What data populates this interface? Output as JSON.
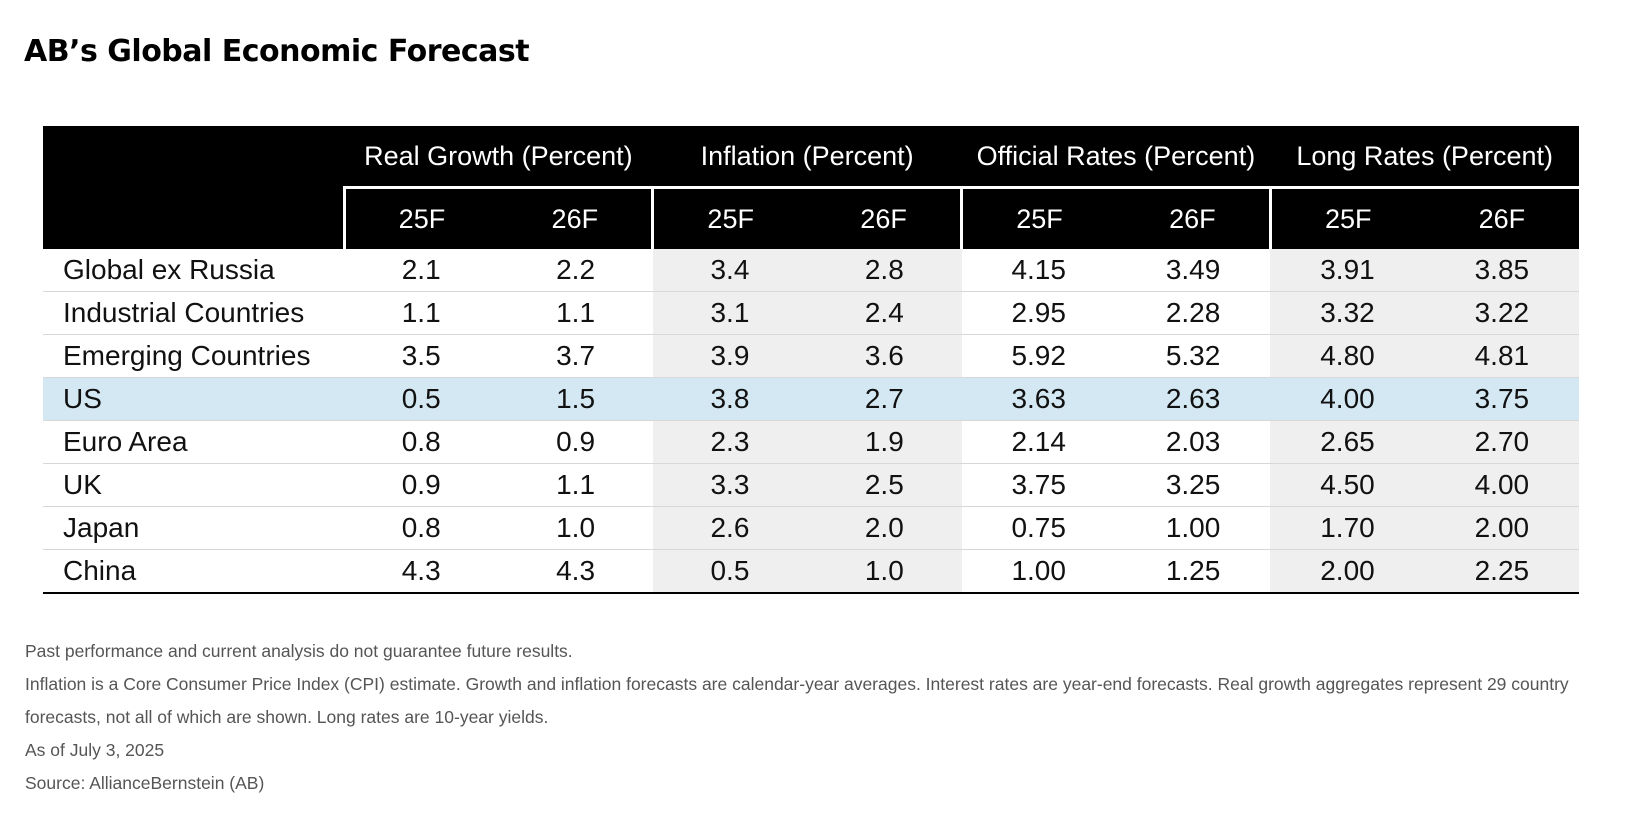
{
  "title": "AB’s Global Economic Forecast",
  "colors": {
    "header_bg": "#000000",
    "shade": "#efefef",
    "highlight": "#d4e8f3"
  },
  "chart_data": {
    "type": "table",
    "groups": [
      {
        "label": "Real Growth (Percent)",
        "subcolumns": [
          "25F",
          "26F"
        ],
        "shaded": false
      },
      {
        "label": "Inflation (Percent)",
        "subcolumns": [
          "25F",
          "26F"
        ],
        "shaded": true
      },
      {
        "label": "Official Rates (Percent)",
        "subcolumns": [
          "25F",
          "26F"
        ],
        "shaded": false
      },
      {
        "label": "Long Rates (Percent)",
        "subcolumns": [
          "25F",
          "26F"
        ],
        "shaded": true
      }
    ],
    "rows": [
      {
        "label": "Global ex Russia",
        "values": [
          "2.1",
          "2.2",
          "3.4",
          "2.8",
          "4.15",
          "3.49",
          "3.91",
          "3.85"
        ],
        "highlight": false
      },
      {
        "label": "Industrial Countries",
        "values": [
          "1.1",
          "1.1",
          "3.1",
          "2.4",
          "2.95",
          "2.28",
          "3.32",
          "3.22"
        ],
        "highlight": false
      },
      {
        "label": "Emerging Countries",
        "values": [
          "3.5",
          "3.7",
          "3.9",
          "3.6",
          "5.92",
          "5.32",
          "4.80",
          "4.81"
        ],
        "highlight": false
      },
      {
        "label": "US",
        "values": [
          "0.5",
          "1.5",
          "3.8",
          "2.7",
          "3.63",
          "2.63",
          "4.00",
          "3.75"
        ],
        "highlight": true
      },
      {
        "label": "Euro Area",
        "values": [
          "0.8",
          "0.9",
          "2.3",
          "1.9",
          "2.14",
          "2.03",
          "2.65",
          "2.70"
        ],
        "highlight": false
      },
      {
        "label": "UK",
        "values": [
          "0.9",
          "1.1",
          "3.3",
          "2.5",
          "3.75",
          "3.25",
          "4.50",
          "4.00"
        ],
        "highlight": false
      },
      {
        "label": "Japan",
        "values": [
          "0.8",
          "1.0",
          "2.6",
          "2.0",
          "0.75",
          "1.00",
          "1.70",
          "2.00"
        ],
        "highlight": false
      },
      {
        "label": "China",
        "values": [
          "4.3",
          "4.3",
          "0.5",
          "1.0",
          "1.00",
          "1.25",
          "2.00",
          "2.25"
        ],
        "highlight": false
      }
    ]
  },
  "notes": [
    "Past performance and current analysis do not guarantee future results.",
    "Inflation is a Core Consumer Price Index (CPI) estimate. Growth and inflation forecasts are calendar-year averages. Interest rates are year-end forecasts. Real growth aggregates represent 29 country forecasts, not all of which are shown. Long rates are 10-year yields.",
    "As of July 3, 2025",
    "Source: AllianceBernstein (AB)"
  ]
}
